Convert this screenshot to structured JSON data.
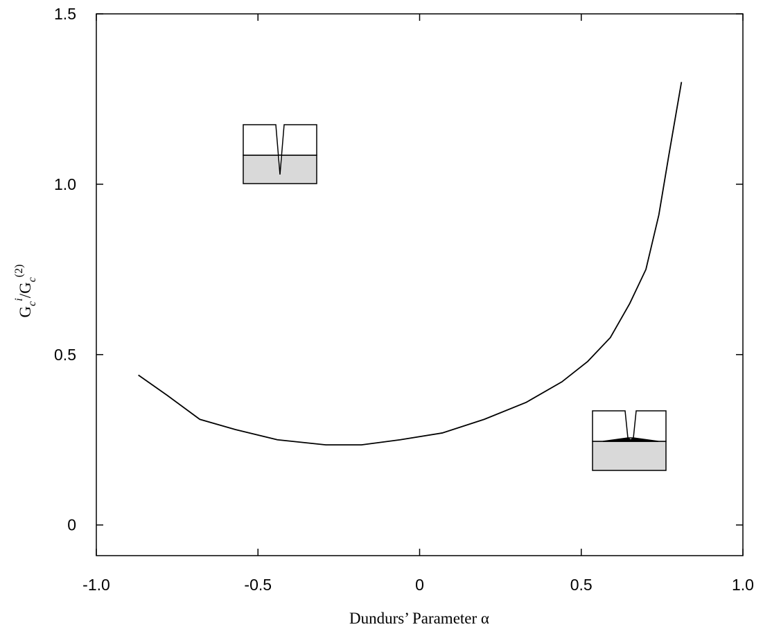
{
  "chart_data": {
    "type": "line",
    "xlabel": "Dundurs’ Parameter α",
    "ylabel": {
      "base1": "G",
      "sub1": "c",
      "sup1": "i",
      "base2": "/G",
      "sub2": "c",
      "sup2": "(2)"
    },
    "xlim": [
      -1,
      1
    ],
    "xticks": [
      {
        "value": -1,
        "label": "-1.0"
      },
      -0.5,
      0,
      0.5,
      {
        "value": 1,
        "label": "1.0"
      }
    ],
    "ylim": [
      -0.09,
      1.5
    ],
    "yticks": [
      0,
      0.5,
      {
        "value": 1,
        "label": "1.0"
      },
      1.5
    ],
    "grid": false,
    "series": [
      {
        "color": "#000000",
        "x": [
          -0.87,
          -0.78,
          -0.68,
          -0.57,
          -0.44,
          -0.29,
          -0.18,
          -0.06,
          0.07,
          0.2,
          0.33,
          0.44,
          0.52,
          0.59,
          0.65,
          0.7,
          0.74,
          0.77,
          0.81
        ],
        "values": [
          0.44,
          0.38,
          0.31,
          0.28,
          0.25,
          0.235,
          0.235,
          0.25,
          0.27,
          0.31,
          0.36,
          0.42,
          0.48,
          0.55,
          0.65,
          0.75,
          0.91,
          1.08,
          1.3
        ]
      }
    ]
  }
}
